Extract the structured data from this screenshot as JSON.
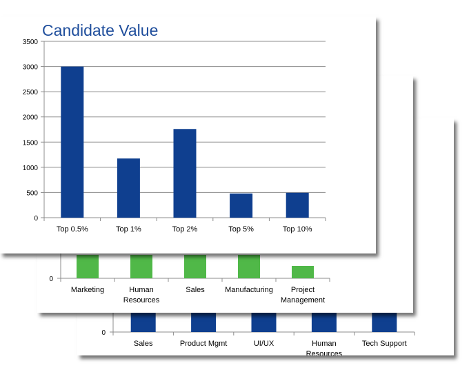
{
  "colors": {
    "front_bar": "#0f3f8f",
    "mid_bar": "#50b848",
    "back_bar": "#0f3f8f",
    "grid": "#8c8c8c",
    "title": "#1f4e9c"
  },
  "chart_data": [
    {
      "type": "bar",
      "title": "Candidate Value",
      "categories": [
        "Top 0.5%",
        "Top 1%",
        "Top 2%",
        "Top 5%",
        "Top 10%"
      ],
      "values": [
        3000,
        1175,
        1760,
        480,
        495
      ],
      "ylim": [
        0,
        3500
      ],
      "yticks": [
        0,
        500,
        1000,
        1500,
        2000,
        2500,
        3000,
        3500
      ],
      "grid": true,
      "bar_color": "#0f3f8f"
    },
    {
      "type": "bar",
      "title": "",
      "categories": [
        "Marketing",
        "Human Resources",
        "Sales",
        "Manufacturing",
        "Project Management"
      ],
      "visible_yticks": [
        0
      ],
      "grid": true,
      "bar_color": "#50b848",
      "partially_hidden": true
    },
    {
      "type": "bar",
      "title": "",
      "categories": [
        "Sales",
        "Product Mgmt",
        "UI/UX",
        "Human Resources",
        "Tech Support"
      ],
      "visible_yticks": [
        0
      ],
      "grid": true,
      "bar_color": "#0f3f8f",
      "partially_hidden": true
    }
  ]
}
